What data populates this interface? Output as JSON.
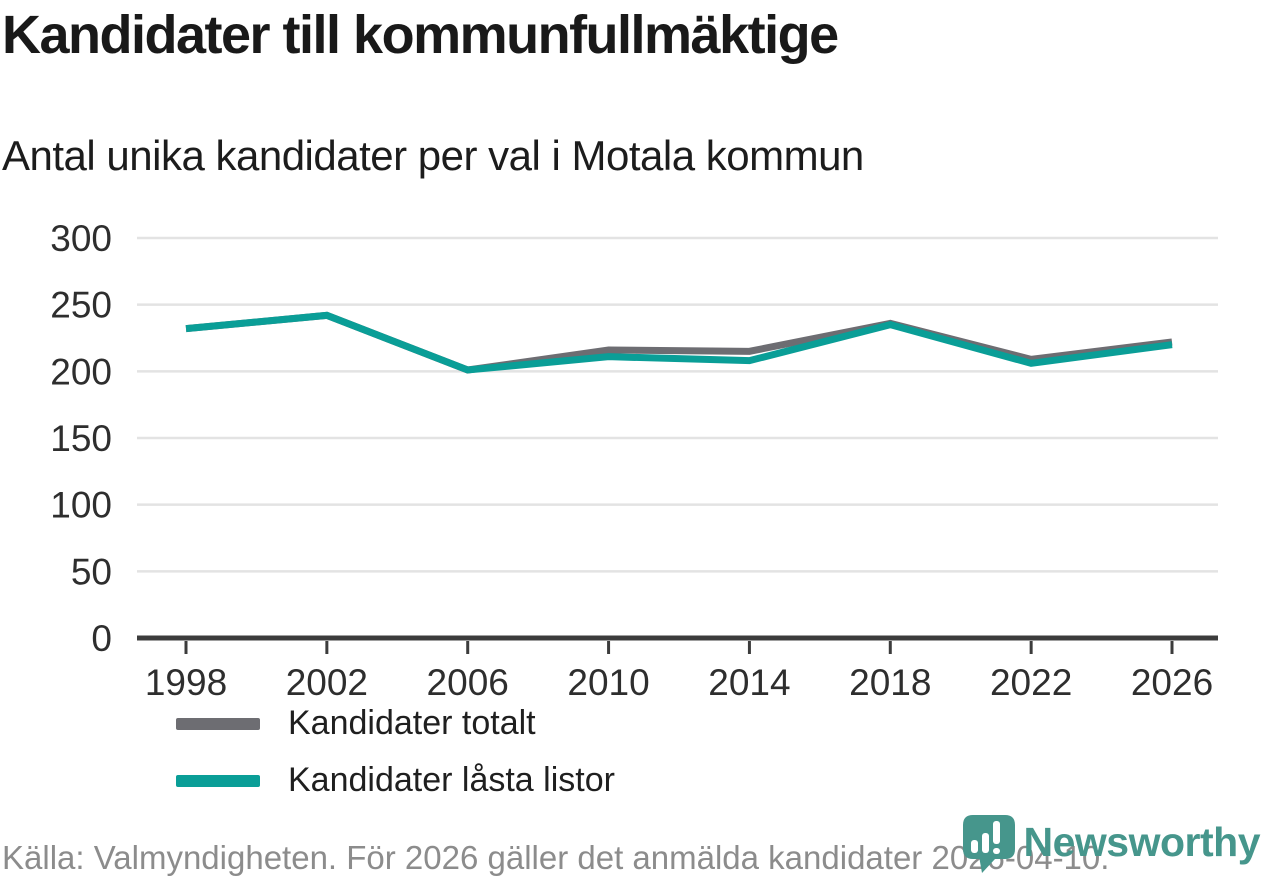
{
  "title": "Kandidater till kommunfullmäktige",
  "subtitle": "Antal unika kandidater per val i Motala kommun",
  "footer": {
    "source": "Källa: Valmyndigheten. För 2026 gäller det anmälda kandidater 2026-04-10."
  },
  "branding": {
    "name": "Newsworthy",
    "logo_color": "#46968c"
  },
  "colors": {
    "title_text": "#191919",
    "axis_text": "#2e2e2e",
    "gridline": "#e3e3e3",
    "axis_line": "#3c3c3c",
    "footer_text": "#8c8c8c"
  },
  "chart_data": {
    "type": "line",
    "x": [
      1998,
      2002,
      2006,
      2010,
      2014,
      2018,
      2022,
      2026
    ],
    "series": [
      {
        "name": "Kandidater totalt",
        "color": "#6d6d72",
        "values": [
          232,
          242,
          201,
          216,
          215,
          236,
          209,
          222
        ]
      },
      {
        "name": "Kandidater låsta listor",
        "color": "#0a9e97",
        "values": [
          232,
          242,
          201,
          211,
          208,
          235,
          206,
          220
        ]
      }
    ],
    "ylim": [
      0,
      300
    ],
    "yticks": [
      0,
      50,
      100,
      150,
      200,
      250,
      300
    ],
    "grid": true,
    "legend_position": "inside-left-middle"
  }
}
